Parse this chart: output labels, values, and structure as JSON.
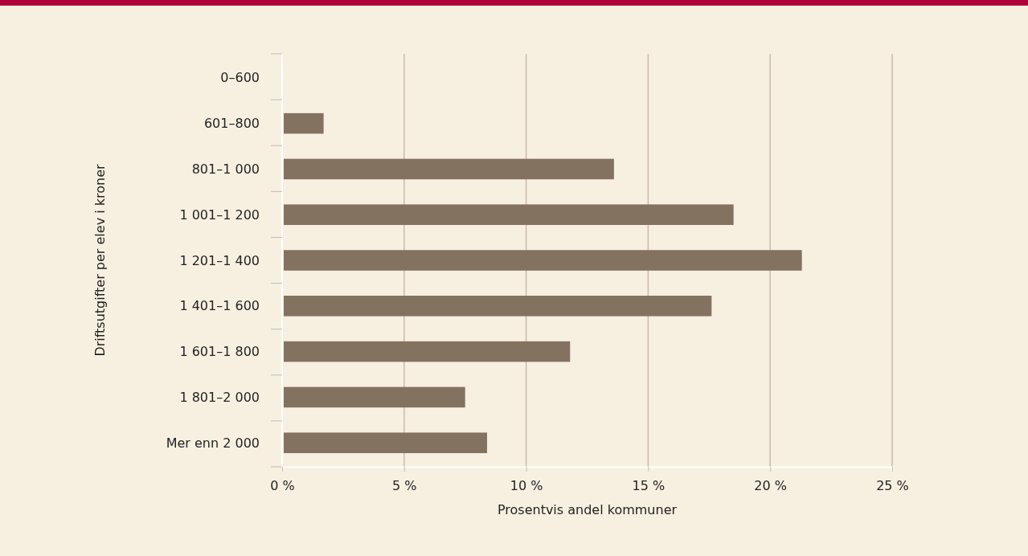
{
  "chart_data": {
    "type": "bar",
    "orientation": "horizontal",
    "xlabel": "Prosentvis andel kommuner",
    "ylabel": "Driftsutgifter per elev i kroner",
    "categories": [
      "0–600",
      "601–800",
      "801–1 000",
      "1 001–1 200",
      "1 201–1 400",
      "1 401–1 600",
      "1 601–1 800",
      "1 801–2 000",
      "Mer enn 2 000"
    ],
    "values": [
      0,
      1.7,
      13.6,
      18.5,
      21.3,
      17.6,
      11.8,
      7.5,
      8.4
    ],
    "color": "#847260",
    "xlim": [
      0,
      25
    ],
    "xticks": [
      {
        "value": 0,
        "label": "0 %"
      },
      {
        "value": 5,
        "label": "5 %"
      },
      {
        "value": 10,
        "label": "10 %"
      },
      {
        "value": 15,
        "label": "15 %"
      },
      {
        "value": 20,
        "label": "20 %"
      },
      {
        "value": 25,
        "label": "25 %"
      }
    ],
    "grid": "x"
  }
}
